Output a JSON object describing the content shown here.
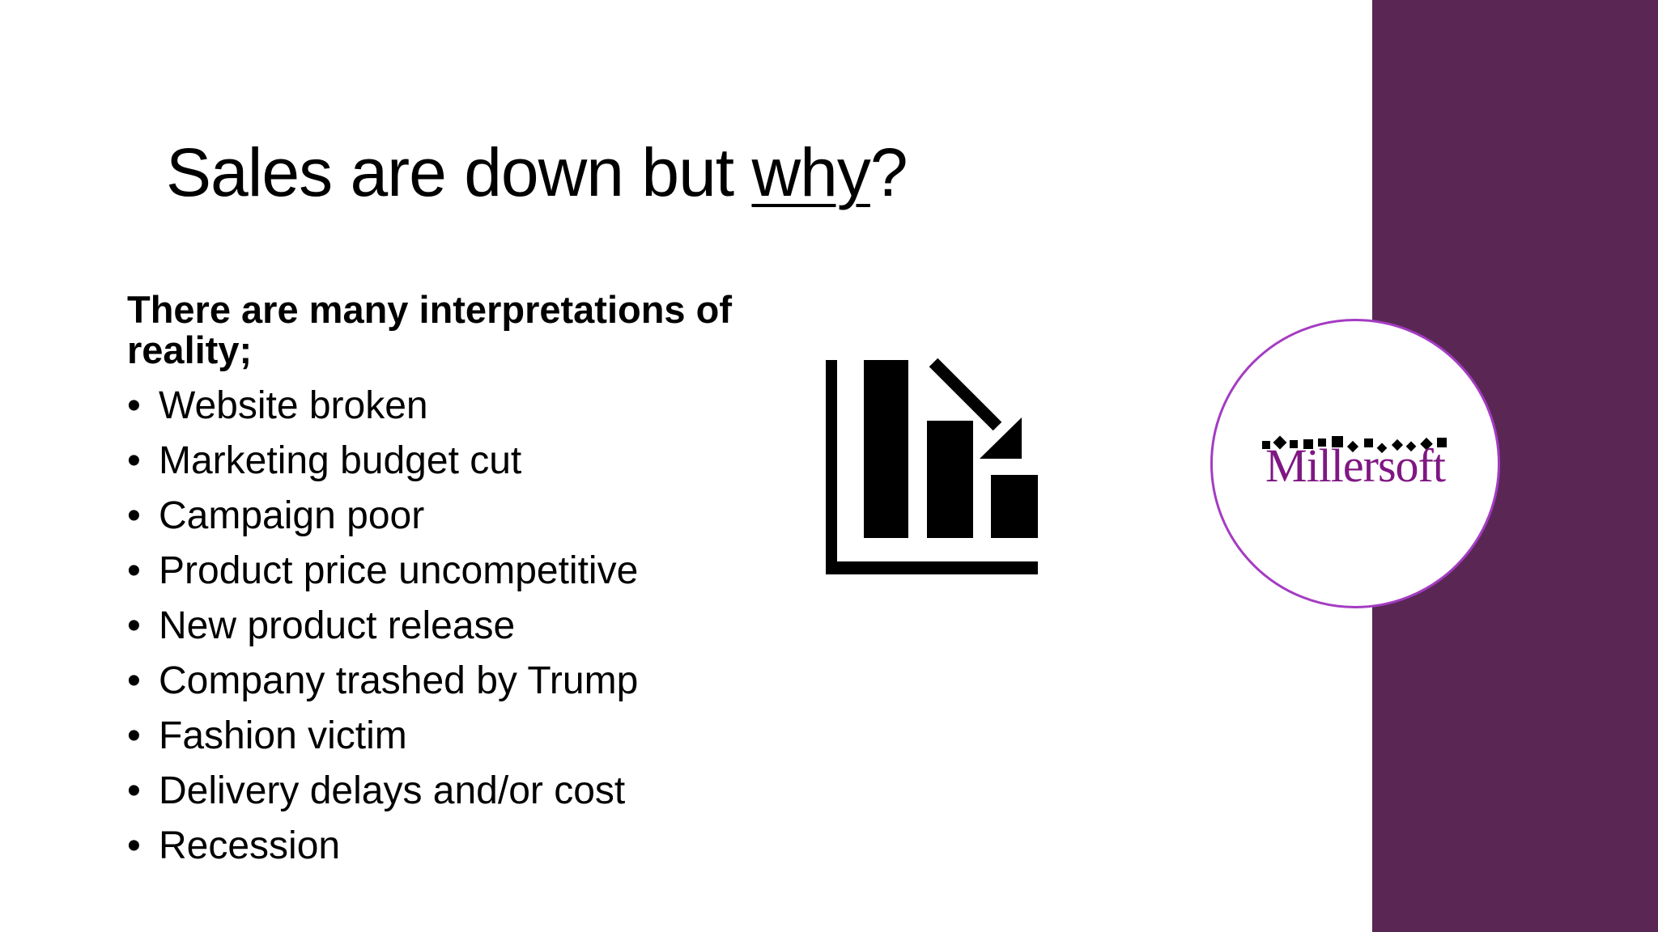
{
  "slide": {
    "title_prefix": "Sales are down but ",
    "title_emphasis": "why",
    "title_suffix": "?",
    "intro": "There are many interpretations of reality;",
    "reasons": [
      "Website broken",
      "Marketing budget cut",
      "Campaign poor",
      "Product price uncompetitive",
      "New product release",
      "Company trashed by Trump",
      "Fashion victim",
      "Delivery delays and/or cost",
      "Recession"
    ],
    "icon": "sales-decline-chart-icon"
  },
  "logo": {
    "text": "Millersoft"
  },
  "colors": {
    "accent_band": "#5a2755",
    "logo_ring": "#a43cc2",
    "logo_text": "#7f1783",
    "text": "#000000",
    "background": "#ffffff"
  }
}
